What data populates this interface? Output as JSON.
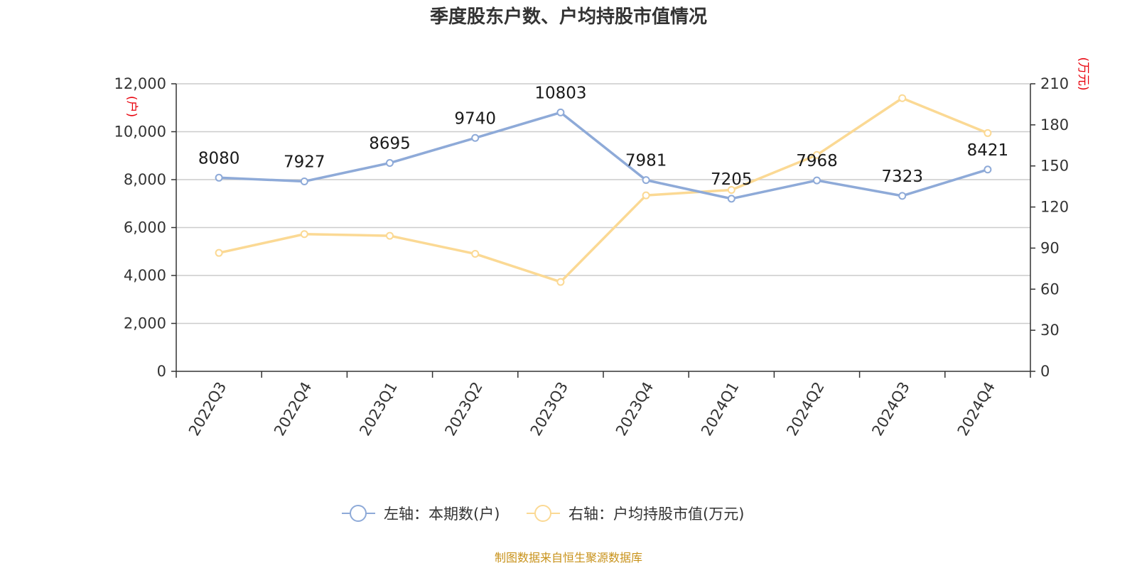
{
  "chart_data": {
    "type": "line",
    "title": "季度股东户数、户均持股市值情况",
    "categories": [
      "2022Q3",
      "2022Q4",
      "2023Q1",
      "2023Q2",
      "2023Q3",
      "2023Q4",
      "2024Q1",
      "2024Q2",
      "2024Q3",
      "2024Q4"
    ],
    "left_axis": {
      "unit": "(户)",
      "ylim": [
        0,
        12000
      ],
      "ticks": [
        0,
        2000,
        4000,
        6000,
        8000,
        10000,
        12000
      ],
      "tick_labels": [
        "0",
        "2,000",
        "4,000",
        "6,000",
        "8,000",
        "10,000",
        "12,000"
      ]
    },
    "right_axis": {
      "unit": "(万元)",
      "ylim": [
        0,
        210
      ],
      "ticks": [
        0,
        30,
        60,
        90,
        120,
        150,
        180,
        210
      ],
      "tick_labels": [
        "0",
        "30",
        "60",
        "90",
        "120",
        "150",
        "180",
        "210"
      ]
    },
    "grid": true,
    "legend_position": "bottom-center",
    "series": [
      {
        "name": "左轴：本期数(户)",
        "axis": "left",
        "color": "#8eaad8",
        "values": [
          8080,
          7927,
          8695,
          9740,
          10803,
          7981,
          7205,
          7968,
          7323,
          8421
        ],
        "labels": [
          "8080",
          "7927",
          "8695",
          "9740",
          "10803",
          "7981",
          "7205",
          "7968",
          "7323",
          "8421"
        ]
      },
      {
        "name": "右轴：户均持股市值(万元)",
        "axis": "right",
        "color": "#fbd994",
        "values": [
          86.5,
          100.2,
          99.0,
          85.8,
          65.3,
          128.5,
          132.5,
          158.0,
          199.5,
          174.0
        ]
      }
    ],
    "source": "制图数据来自恒生聚源数据库"
  }
}
